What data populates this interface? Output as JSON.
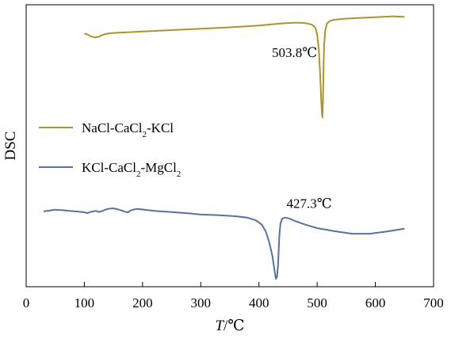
{
  "chart_data": {
    "type": "line",
    "xlabel_var": "T",
    "xlabel_unit": "/℃",
    "ylabel": "DSC",
    "xlim": [
      0,
      700
    ],
    "xticks": [
      0,
      100,
      200,
      300,
      400,
      500,
      600,
      700
    ],
    "ylim": [
      0,
      100
    ],
    "yticks_shown": false,
    "grid": false,
    "legend": "left-middle",
    "series": [
      {
        "name": "NaCl-CaCl₂-KCl",
        "name_parts": [
          "NaCl-CaCl",
          "2",
          "-KCl"
        ],
        "color": "#a8962c",
        "x": [
          100,
          105,
          112,
          118,
          124,
          130,
          136,
          142,
          150,
          160,
          180,
          200,
          250,
          300,
          350,
          400,
          440,
          460,
          475,
          485,
          492,
          497,
          500,
          503,
          505,
          507,
          508,
          509,
          510,
          511,
          512,
          514,
          517,
          522,
          530,
          545,
          570,
          600,
          630,
          650
        ],
        "y": [
          89.8,
          89.5,
          88.7,
          88.4,
          88.6,
          89.2,
          89.6,
          89.8,
          90.0,
          90.1,
          90.3,
          90.5,
          91.0,
          91.5,
          92.0,
          92.6,
          93.4,
          93.6,
          93.6,
          93.3,
          92.8,
          91.8,
          89.5,
          84.0,
          76.0,
          66.0,
          62.0,
          60.0,
          66.0,
          78.0,
          86.0,
          91.0,
          93.4,
          94.3,
          94.7,
          95.0,
          95.3,
          95.6,
          95.9,
          95.7
        ]
      },
      {
        "name": "KCl-CaCl₂-MgCl₂",
        "name_parts": [
          "KCl-CaCl",
          "2",
          "-MgCl",
          "2"
        ],
        "color": "#5572a0",
        "x": [
          30,
          40,
          50,
          60,
          70,
          80,
          90,
          100,
          105,
          110,
          115,
          120,
          125,
          130,
          140,
          150,
          160,
          170,
          175,
          180,
          190,
          200,
          220,
          250,
          280,
          300,
          330,
          360,
          380,
          395,
          405,
          412,
          418,
          423,
          427,
          429,
          431,
          433,
          434,
          435,
          437,
          440,
          445,
          452,
          462,
          480,
          500,
          530,
          560,
          590,
          620,
          650
        ],
        "y": [
          26.7,
          27.0,
          27.3,
          27.2,
          27.0,
          26.8,
          26.6,
          26.4,
          26.1,
          26.5,
          26.7,
          26.9,
          26.5,
          26.8,
          27.6,
          27.8,
          27.3,
          26.6,
          26.4,
          27.1,
          27.6,
          27.4,
          26.9,
          26.5,
          26.0,
          25.6,
          25.4,
          25.0,
          24.5,
          23.5,
          22.0,
          19.5,
          15.5,
          11.0,
          5.5,
          2.8,
          3.5,
          8.0,
          13.5,
          18.0,
          22.5,
          24.2,
          24.5,
          24.2,
          23.3,
          22.0,
          20.8,
          19.7,
          18.8,
          18.8,
          19.6,
          20.6
        ]
      }
    ],
    "annotations": [
      {
        "text": "503.8℃",
        "x": 507,
        "y": 80
      },
      {
        "text": "427.3℃",
        "x": 427,
        "y": 28
      }
    ]
  }
}
